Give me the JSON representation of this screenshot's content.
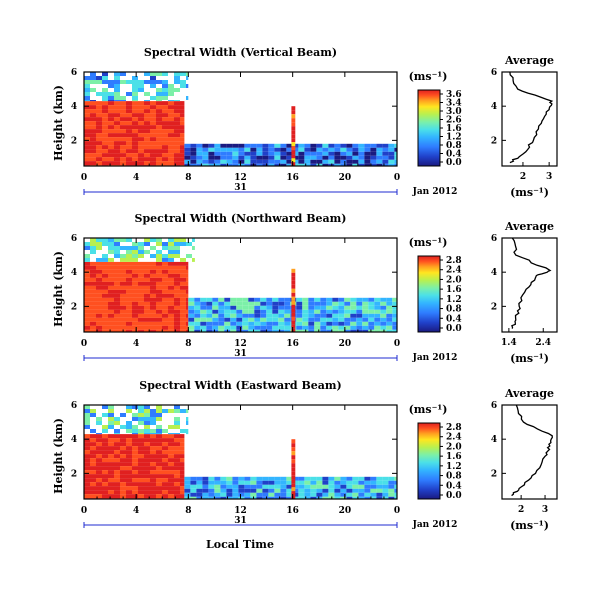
{
  "colors": {
    "jet": [
      "#1a1a80",
      "#2040c8",
      "#2f7cff",
      "#33b5ff",
      "#4be0e8",
      "#7cf0a8",
      "#b8f050",
      "#ffe620",
      "#ffa020",
      "#ff5020",
      "#e02020"
    ],
    "white": "#ffffff",
    "black": "#000000"
  },
  "panels": [
    {
      "title": "Spectral Width (Vertical Beam)",
      "ylabel": "Height (km)",
      "date_label": "Jan 2012",
      "day_label": "31",
      "colorbar": {
        "unit": "(ms⁻¹)",
        "ticks": [
          "3.6",
          "3.4",
          "3.0",
          "2.6",
          "1.6",
          "1.2",
          "0.8",
          "0.4",
          "0.0"
        ]
      },
      "profile": {
        "title": "Average",
        "xlabel": "(ms⁻¹)",
        "xticks": [
          "2",
          "3"
        ],
        "yticks": [
          "6",
          "4",
          "2"
        ]
      }
    },
    {
      "title": "Spectral Width (Northward Beam)",
      "ylabel": "Height (km)",
      "date_label": "Jan 2012",
      "day_label": "31",
      "colorbar": {
        "unit": "(ms⁻¹)",
        "ticks": [
          "2.8",
          "2.4",
          "2.0",
          "1.6",
          "1.2",
          "0.8",
          "0.4",
          "0.0"
        ]
      },
      "profile": {
        "title": "Average",
        "xlabel": "(ms⁻¹)",
        "xticks": [
          "1.4",
          "2.4"
        ],
        "yticks": [
          "6",
          "4",
          "2"
        ]
      }
    },
    {
      "title": "Spectral Width (Eastward Beam)",
      "ylabel": "Height (km)",
      "date_label": "Jan 2012",
      "day_label": "31",
      "colorbar": {
        "unit": "(ms⁻¹)",
        "ticks": [
          "2.8",
          "2.4",
          "2.0",
          "1.6",
          "1.2",
          "0.8",
          "0.4",
          "0.0"
        ]
      },
      "profile": {
        "title": "Average",
        "xlabel": "(ms⁻¹)",
        "xticks": [
          "2",
          "3"
        ],
        "yticks": [
          "6",
          "4",
          "2"
        ]
      }
    }
  ],
  "xlabel_bottom": "Local Time",
  "chart_data": [
    {
      "type": "heatmap",
      "title": "Spectral Width (Vertical Beam)",
      "xlabel": "",
      "ylabel": "Height (km)",
      "x_ticks": [
        "0",
        "4",
        "8",
        "12",
        "16",
        "20",
        "0"
      ],
      "y_ticks": [
        "6",
        "4",
        "2"
      ],
      "xlim": [
        0,
        24
      ],
      "ylim": [
        0.5,
        6
      ],
      "clim": [
        0,
        3.6
      ],
      "regions": [
        {
          "t": [
            0,
            7.7
          ],
          "h": [
            0.5,
            4.3
          ],
          "value": 3.4
        },
        {
          "t": [
            0,
            8
          ],
          "h": [
            4.3,
            6
          ],
          "value": 1.2
        },
        {
          "t": [
            7.7,
            24
          ],
          "h": [
            0.5,
            1.8
          ],
          "value": 0.6
        },
        {
          "t": [
            15.9,
            16.2
          ],
          "h": [
            0.5,
            4.0
          ],
          "value": 3.4
        }
      ],
      "profile": {
        "title": "Average",
        "x": [
          1.5,
          2.0,
          2.4,
          2.7,
          3.0,
          3.1,
          1.8,
          1.5
        ],
        "y": [
          0.7,
          1.2,
          2.0,
          3.0,
          3.8,
          4.3,
          5.0,
          6.0
        ],
        "xlim": [
          1.2,
          3.3
        ]
      }
    },
    {
      "type": "heatmap",
      "title": "Spectral Width (Northward Beam)",
      "xlabel": "",
      "ylabel": "Height (km)",
      "x_ticks": [
        "0",
        "4",
        "8",
        "12",
        "16",
        "20",
        "0"
      ],
      "y_ticks": [
        "6",
        "4",
        "2"
      ],
      "xlim": [
        0,
        24
      ],
      "ylim": [
        0.5,
        6
      ],
      "clim": [
        0,
        2.8
      ],
      "regions": [
        {
          "t": [
            0,
            8
          ],
          "h": [
            0.5,
            4.6
          ],
          "value": 2.6
        },
        {
          "t": [
            0,
            8.5
          ],
          "h": [
            4.6,
            6
          ],
          "value": 1.2
        },
        {
          "t": [
            8,
            24
          ],
          "h": [
            0.5,
            2.5
          ],
          "value": 0.9
        },
        {
          "t": [
            15.9,
            16.2
          ],
          "h": [
            0.5,
            4.2
          ],
          "value": 2.6
        }
      ],
      "profile": {
        "title": "Average",
        "x": [
          1.5,
          1.6,
          1.7,
          1.9,
          2.2,
          2.6,
          1.6,
          1.5
        ],
        "y": [
          0.7,
          1.2,
          2.0,
          3.0,
          3.8,
          4.1,
          5.0,
          6.0
        ],
        "xlim": [
          1.2,
          2.8
        ]
      }
    },
    {
      "type": "heatmap",
      "title": "Spectral Width (Eastward Beam)",
      "xlabel": "Local Time",
      "ylabel": "Height (km)",
      "x_ticks": [
        "0",
        "4",
        "8",
        "12",
        "16",
        "20",
        "0"
      ],
      "y_ticks": [
        "6",
        "4",
        "2"
      ],
      "xlim": [
        0,
        24
      ],
      "ylim": [
        0.5,
        6
      ],
      "clim": [
        0,
        2.8
      ],
      "regions": [
        {
          "t": [
            0,
            7.7
          ],
          "h": [
            0.5,
            4.3
          ],
          "value": 2.7
        },
        {
          "t": [
            0,
            8
          ],
          "h": [
            4.3,
            6
          ],
          "value": 1.1
        },
        {
          "t": [
            7.7,
            24
          ],
          "h": [
            0.5,
            1.8
          ],
          "value": 0.8
        },
        {
          "t": [
            15.9,
            16.2
          ],
          "h": [
            0.5,
            4.0
          ],
          "value": 2.7
        }
      ],
      "profile": {
        "title": "Average",
        "x": [
          1.6,
          2.0,
          2.6,
          3.0,
          3.2,
          3.3,
          2.1,
          1.8
        ],
        "y": [
          0.7,
          1.2,
          2.0,
          3.0,
          3.6,
          4.2,
          5.0,
          6.0
        ],
        "xlim": [
          1.2,
          3.5
        ]
      }
    }
  ]
}
